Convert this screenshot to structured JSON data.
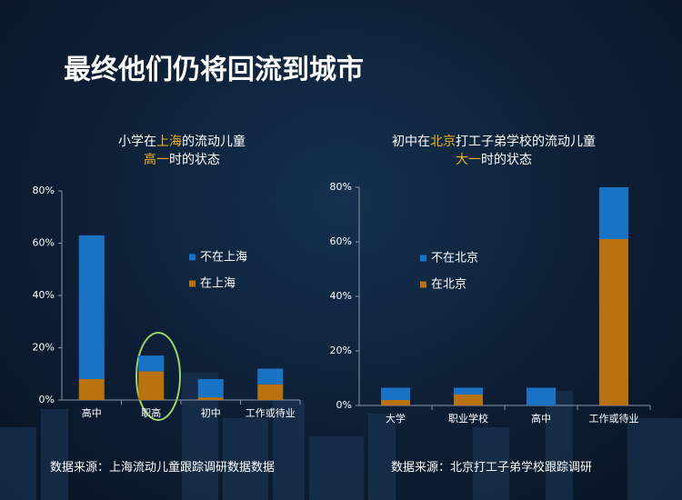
{
  "slide_title": "最终他们仍将回流到城市",
  "chart_data": [
    {
      "type": "stacked_bar",
      "title": [
        [
          {
            "text": "小学在"
          },
          {
            "text": "上海",
            "highlight": true
          },
          {
            "text": "的流动儿童"
          }
        ],
        [
          {
            "text": "高一",
            "highlight": true
          },
          {
            "text": "时的状态"
          }
        ]
      ],
      "highlight_color": "#f2b418",
      "categories": [
        "高中",
        "职高",
        "初中",
        "工作或待业"
      ],
      "series": [
        {
          "name": "不在上海",
          "color": "#1a72c4",
          "values": [
            55,
            6,
            7,
            6
          ]
        },
        {
          "name": "在上海",
          "color": "#b8720f",
          "values": [
            8,
            11,
            1,
            6
          ]
        }
      ],
      "ylim": [
        0,
        80
      ],
      "yticks": [
        {
          "value": 0,
          "label": "0%"
        },
        {
          "value": 20,
          "label": "20%"
        },
        {
          "value": 40,
          "label": "40%"
        },
        {
          "value": 60,
          "label": "60%"
        },
        {
          "value": 80,
          "label": "80%"
        }
      ],
      "source": "数据来源：上海流动儿童跟踪调研数据数据"
    },
    {
      "type": "stacked_bar",
      "title": [
        [
          {
            "text": "初中在"
          },
          {
            "text": "北京",
            "highlight": true
          },
          {
            "text": "打工子弟学校的流动儿童"
          }
        ],
        [
          {
            "text": "大一",
            "highlight": true
          },
          {
            "text": "时的状态"
          }
        ]
      ],
      "highlight_color": "#f2b418",
      "categories": [
        "大学",
        "职业学校",
        "高中",
        "工作或待业"
      ],
      "series": [
        {
          "name": "不在北京",
          "color": "#1a72c4",
          "values": [
            4.5,
            2.5,
            6.5,
            19
          ]
        },
        {
          "name": "在北京",
          "color": "#b8720f",
          "values": [
            2,
            4,
            0,
            61
          ]
        }
      ],
      "ylim": [
        0,
        80
      ],
      "yticks": [
        {
          "value": 0,
          "label": "0%"
        },
        {
          "value": 20,
          "label": "20%"
        },
        {
          "value": 40,
          "label": "40%"
        },
        {
          "value": 60,
          "label": "60%"
        },
        {
          "value": 80,
          "label": "80%"
        }
      ],
      "source": "数据来源：北京打工子弟学校跟踪调研"
    }
  ]
}
